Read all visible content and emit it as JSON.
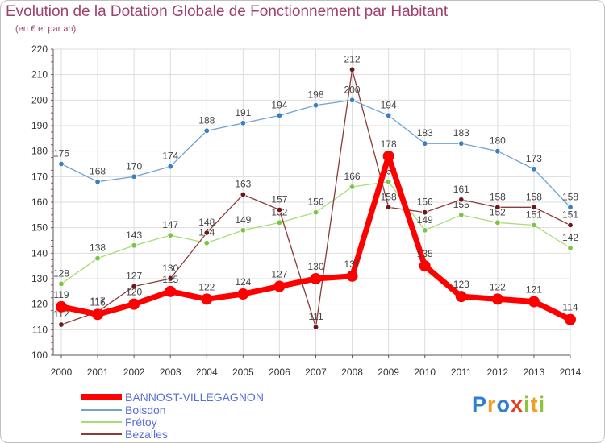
{
  "title": "Evolution de la Dotation Globale de Fonctionnement par Habitant",
  "subtitle": "(en € et par an)",
  "logo": {
    "text": "Proxiti",
    "colors": [
      "#2f7fd4",
      "#f0a01e",
      "#2f7fd4",
      "#e8401c",
      "#8cc43c",
      "#f0a01e",
      "#8cc43c"
    ]
  },
  "chart_data": {
    "type": "line",
    "title": "Evolution de la Dotation Globale de Fonctionnement par Habitant",
    "subtitle": "(en € et par an)",
    "xlabel": "",
    "ylabel": "",
    "x": [
      "2000",
      "2001",
      "2002",
      "2003",
      "2004",
      "2005",
      "2006",
      "2007",
      "2008",
      "2009",
      "2010",
      "2011",
      "2012",
      "2013",
      "2014"
    ],
    "ylim": [
      100,
      220
    ],
    "yticks": [
      100,
      110,
      120,
      130,
      140,
      150,
      160,
      170,
      180,
      190,
      200,
      210,
      220
    ],
    "grid": true,
    "legend_position": "bottom-left",
    "series": [
      {
        "name": "Boisdon",
        "color": "#6fa3d0",
        "marker": "#3a7fc1",
        "values": [
          175,
          168,
          170,
          174,
          188,
          191,
          194,
          198,
          200,
          194,
          183,
          183,
          180,
          173,
          158
        ],
        "labels": [
          "175",
          "168",
          "170",
          "174",
          "188",
          "191",
          "194",
          "198",
          "200",
          "194",
          "183",
          "183",
          "180",
          "173",
          "158"
        ]
      },
      {
        "name": "Frétoy",
        "color": "#a8dc78",
        "marker": "#7cc444",
        "values": [
          128,
          138,
          143,
          147,
          144,
          149,
          152,
          156,
          166,
          168,
          149,
          155,
          152,
          151,
          142
        ],
        "labels": [
          "128",
          "138",
          "143",
          "147",
          "144",
          "149",
          "152",
          "156",
          "166",
          "168",
          "149",
          "155",
          "152",
          "151",
          "142"
        ]
      },
      {
        "name": "Bezalles",
        "color": "#8c3a3a",
        "marker": "#6a1a1a",
        "values": [
          112,
          117,
          127,
          130,
          148,
          163,
          157,
          111,
          212,
          158,
          156,
          161,
          158,
          158,
          151
        ],
        "labels": [
          "112",
          "117",
          "127",
          "130",
          "148",
          "163",
          "157",
          "111",
          "212",
          "158",
          "156",
          "161",
          "158",
          "158",
          "151"
        ]
      },
      {
        "name": "BANNOST-VILLEGAGNON",
        "color": "#ff0000",
        "marker": "#ff0000",
        "values": [
          119,
          116,
          120,
          125,
          122,
          124,
          127,
          130,
          131,
          178,
          135,
          123,
          122,
          121,
          114
        ],
        "labels": [
          "119",
          "116",
          "120",
          "125",
          "122",
          "124",
          "127",
          "130",
          "131",
          "178",
          "135",
          "123",
          "122",
          "121",
          "114"
        ]
      }
    ],
    "legend_order": [
      "BANNOST-VILLEGAGNON",
      "Boisdon",
      "Frétoy",
      "Bezalles"
    ]
  }
}
